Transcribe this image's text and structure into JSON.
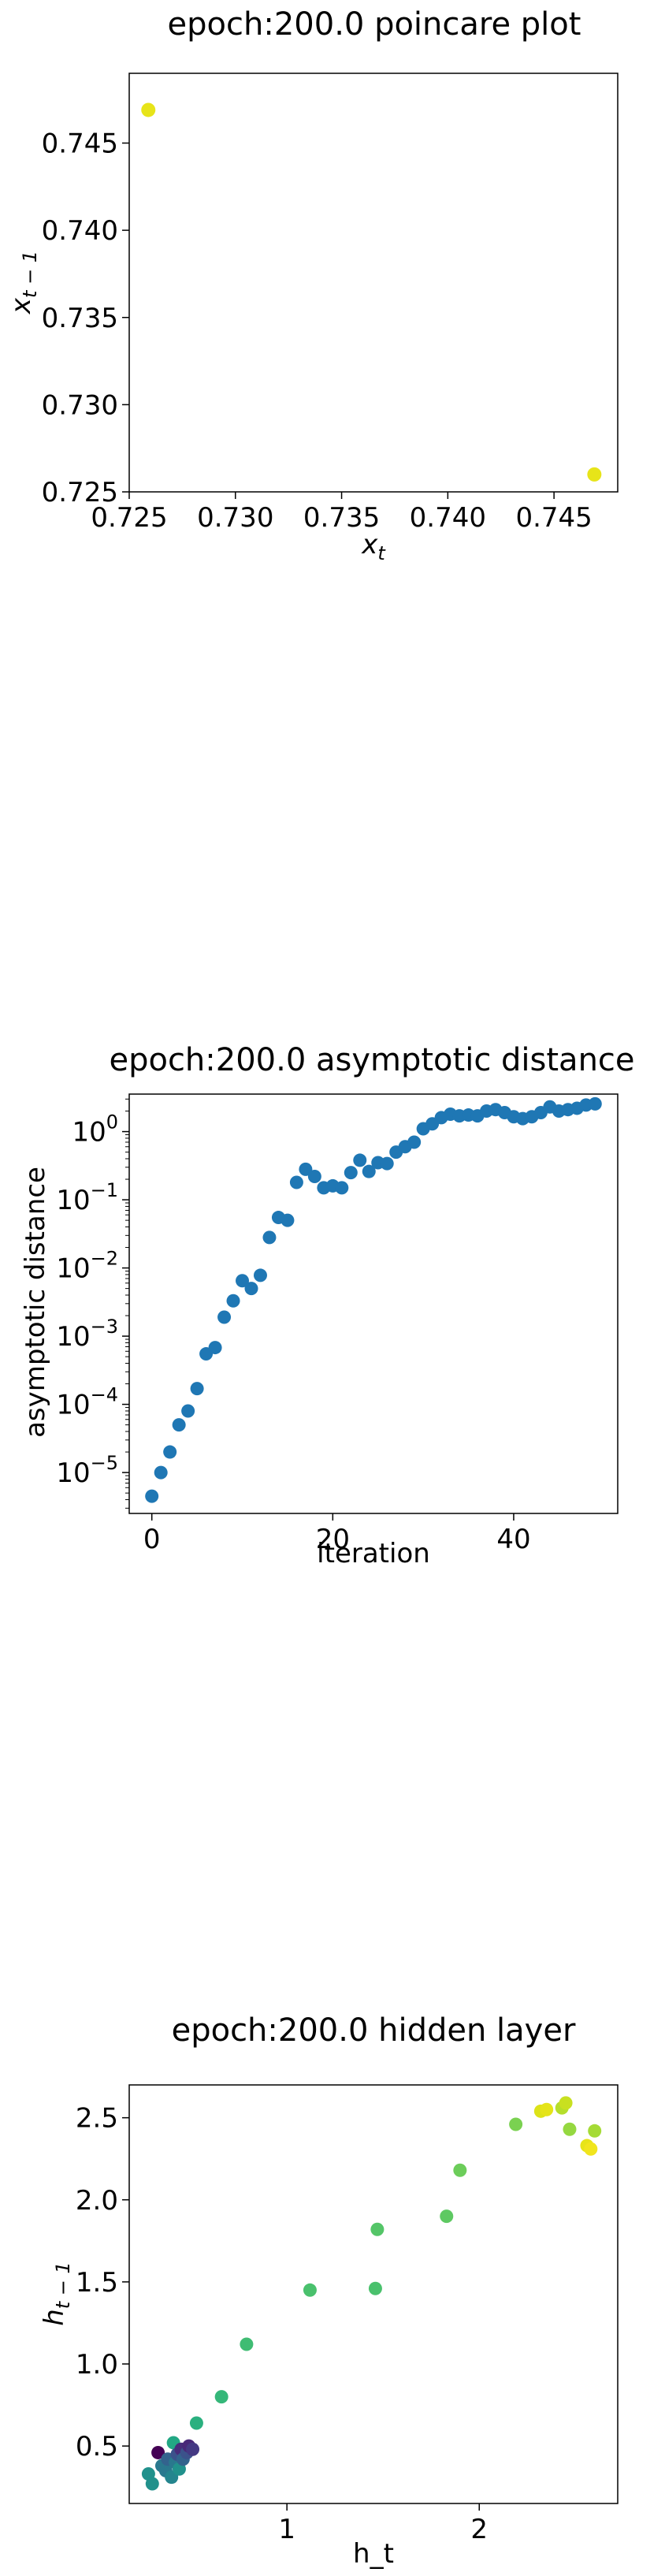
{
  "chart_data": [
    {
      "type": "scatter",
      "title": "epoch:200.0 poincare plot",
      "xlabel": "x_t",
      "ylabel": "x_{t-1}",
      "xlim": [
        0.725,
        0.748
      ],
      "ylim": [
        0.725,
        0.749
      ],
      "x_ticks": [
        0.725,
        0.73,
        0.735,
        0.74,
        0.745
      ],
      "x_tick_labels": [
        "0.725",
        "0.730",
        "0.735",
        "0.740",
        "0.745"
      ],
      "y_ticks": [
        0.725,
        0.73,
        0.735,
        0.74,
        0.745
      ],
      "y_tick_labels": [
        "0.725",
        "0.730",
        "0.735",
        "0.740",
        "0.745"
      ],
      "grid": false,
      "points": [
        {
          "x": 0.7259,
          "y": 0.7469,
          "color": "#e7e419"
        },
        {
          "x": 0.7469,
          "y": 0.726,
          "color": "#e7e419"
        }
      ]
    },
    {
      "type": "scatter",
      "title": "epoch:200.0 asymptotic distance",
      "xlabel": "iteration",
      "ylabel": "asymptotic distance",
      "y_scale": "log",
      "xlim": [
        -2.5,
        51.5
      ],
      "ylim_log10": [
        -5.6,
        0.55
      ],
      "x_ticks": [
        0,
        20,
        40
      ],
      "x_tick_labels": [
        "0",
        "20",
        "40"
      ],
      "y_ticks_log10": [
        -5,
        -4,
        -3,
        -2,
        -1,
        0
      ],
      "grid": false,
      "color": "#1f77b4",
      "x": [
        0,
        1,
        2,
        3,
        4,
        5,
        6,
        7,
        8,
        9,
        10,
        11,
        12,
        13,
        14,
        15,
        16,
        17,
        18,
        19,
        20,
        21,
        22,
        23,
        24,
        25,
        26,
        27,
        28,
        29,
        30,
        31,
        32,
        33,
        34,
        35,
        36,
        37,
        38,
        39,
        40,
        41,
        42,
        43,
        44,
        45,
        46,
        47,
        48,
        49
      ],
      "y": [
        4.5e-06,
        1e-05,
        2e-05,
        5e-05,
        8e-05,
        0.00017,
        0.00055,
        0.00068,
        0.0019,
        0.0033,
        0.0065,
        0.005,
        0.0078,
        0.028,
        0.055,
        0.05,
        0.18,
        0.28,
        0.22,
        0.15,
        0.16,
        0.15,
        0.25,
        0.38,
        0.26,
        0.35,
        0.34,
        0.5,
        0.6,
        0.7,
        1.1,
        1.3,
        1.6,
        1.8,
        1.7,
        1.75,
        1.7,
        2.0,
        2.1,
        1.9,
        1.65,
        1.55,
        1.65,
        1.9,
        2.3,
        2.0,
        2.1,
        2.2,
        2.45,
        2.55
      ]
    },
    {
      "type": "scatter",
      "title": "epoch:200.0 hidden layer",
      "xlabel": "h_t",
      "ylabel": "h_{t-1}",
      "xlim": [
        0.18,
        2.72
      ],
      "ylim": [
        0.15,
        2.7
      ],
      "x_ticks": [
        1,
        2
      ],
      "x_tick_labels": [
        "1",
        "2"
      ],
      "y_ticks": [
        0.5,
        1.0,
        1.5,
        2.0,
        2.5
      ],
      "y_tick_labels": [
        "0.5",
        "1.0",
        "1.5",
        "2.0",
        "2.5"
      ],
      "grid": false,
      "points": [
        {
          "x": 0.28,
          "y": 0.33,
          "color": "#21918c"
        },
        {
          "x": 0.3,
          "y": 0.27,
          "color": "#21918c"
        },
        {
          "x": 0.33,
          "y": 0.46,
          "color": "#440154"
        },
        {
          "x": 0.35,
          "y": 0.38,
          "color": "#2a788e"
        },
        {
          "x": 0.37,
          "y": 0.35,
          "color": "#2a788e"
        },
        {
          "x": 0.38,
          "y": 0.42,
          "color": "#33638d"
        },
        {
          "x": 0.4,
          "y": 0.31,
          "color": "#25858e"
        },
        {
          "x": 0.41,
          "y": 0.52,
          "color": "#22a884"
        },
        {
          "x": 0.42,
          "y": 0.4,
          "color": "#2a788e"
        },
        {
          "x": 0.43,
          "y": 0.45,
          "color": "#3b528b"
        },
        {
          "x": 0.44,
          "y": 0.36,
          "color": "#21918c"
        },
        {
          "x": 0.45,
          "y": 0.48,
          "color": "#472d7b"
        },
        {
          "x": 0.46,
          "y": 0.42,
          "color": "#33638d"
        },
        {
          "x": 0.48,
          "y": 0.46,
          "color": "#3b528b"
        },
        {
          "x": 0.49,
          "y": 0.5,
          "color": "#482878"
        },
        {
          "x": 0.51,
          "y": 0.48,
          "color": "#443983"
        },
        {
          "x": 0.53,
          "y": 0.64,
          "color": "#2ab07f"
        },
        {
          "x": 0.66,
          "y": 0.8,
          "color": "#35b779"
        },
        {
          "x": 0.79,
          "y": 1.12,
          "color": "#3fbc73"
        },
        {
          "x": 1.12,
          "y": 1.45,
          "color": "#4ac16d"
        },
        {
          "x": 1.46,
          "y": 1.46,
          "color": "#4ac16d"
        },
        {
          "x": 1.47,
          "y": 1.82,
          "color": "#54c568"
        },
        {
          "x": 1.83,
          "y": 1.9,
          "color": "#5ec962"
        },
        {
          "x": 1.9,
          "y": 2.18,
          "color": "#6ccd5a"
        },
        {
          "x": 2.19,
          "y": 2.46,
          "color": "#7ad151"
        },
        {
          "x": 2.32,
          "y": 2.54,
          "color": "#dde318"
        },
        {
          "x": 2.35,
          "y": 2.55,
          "color": "#e5e419"
        },
        {
          "x": 2.43,
          "y": 2.56,
          "color": "#b5de2b"
        },
        {
          "x": 2.45,
          "y": 2.59,
          "color": "#c8e020"
        },
        {
          "x": 2.47,
          "y": 2.43,
          "color": "#95d840"
        },
        {
          "x": 2.56,
          "y": 2.33,
          "color": "#e7e419"
        },
        {
          "x": 2.58,
          "y": 2.31,
          "color": "#f1e51d"
        },
        {
          "x": 2.6,
          "y": 2.42,
          "color": "#a5db36"
        }
      ]
    }
  ]
}
